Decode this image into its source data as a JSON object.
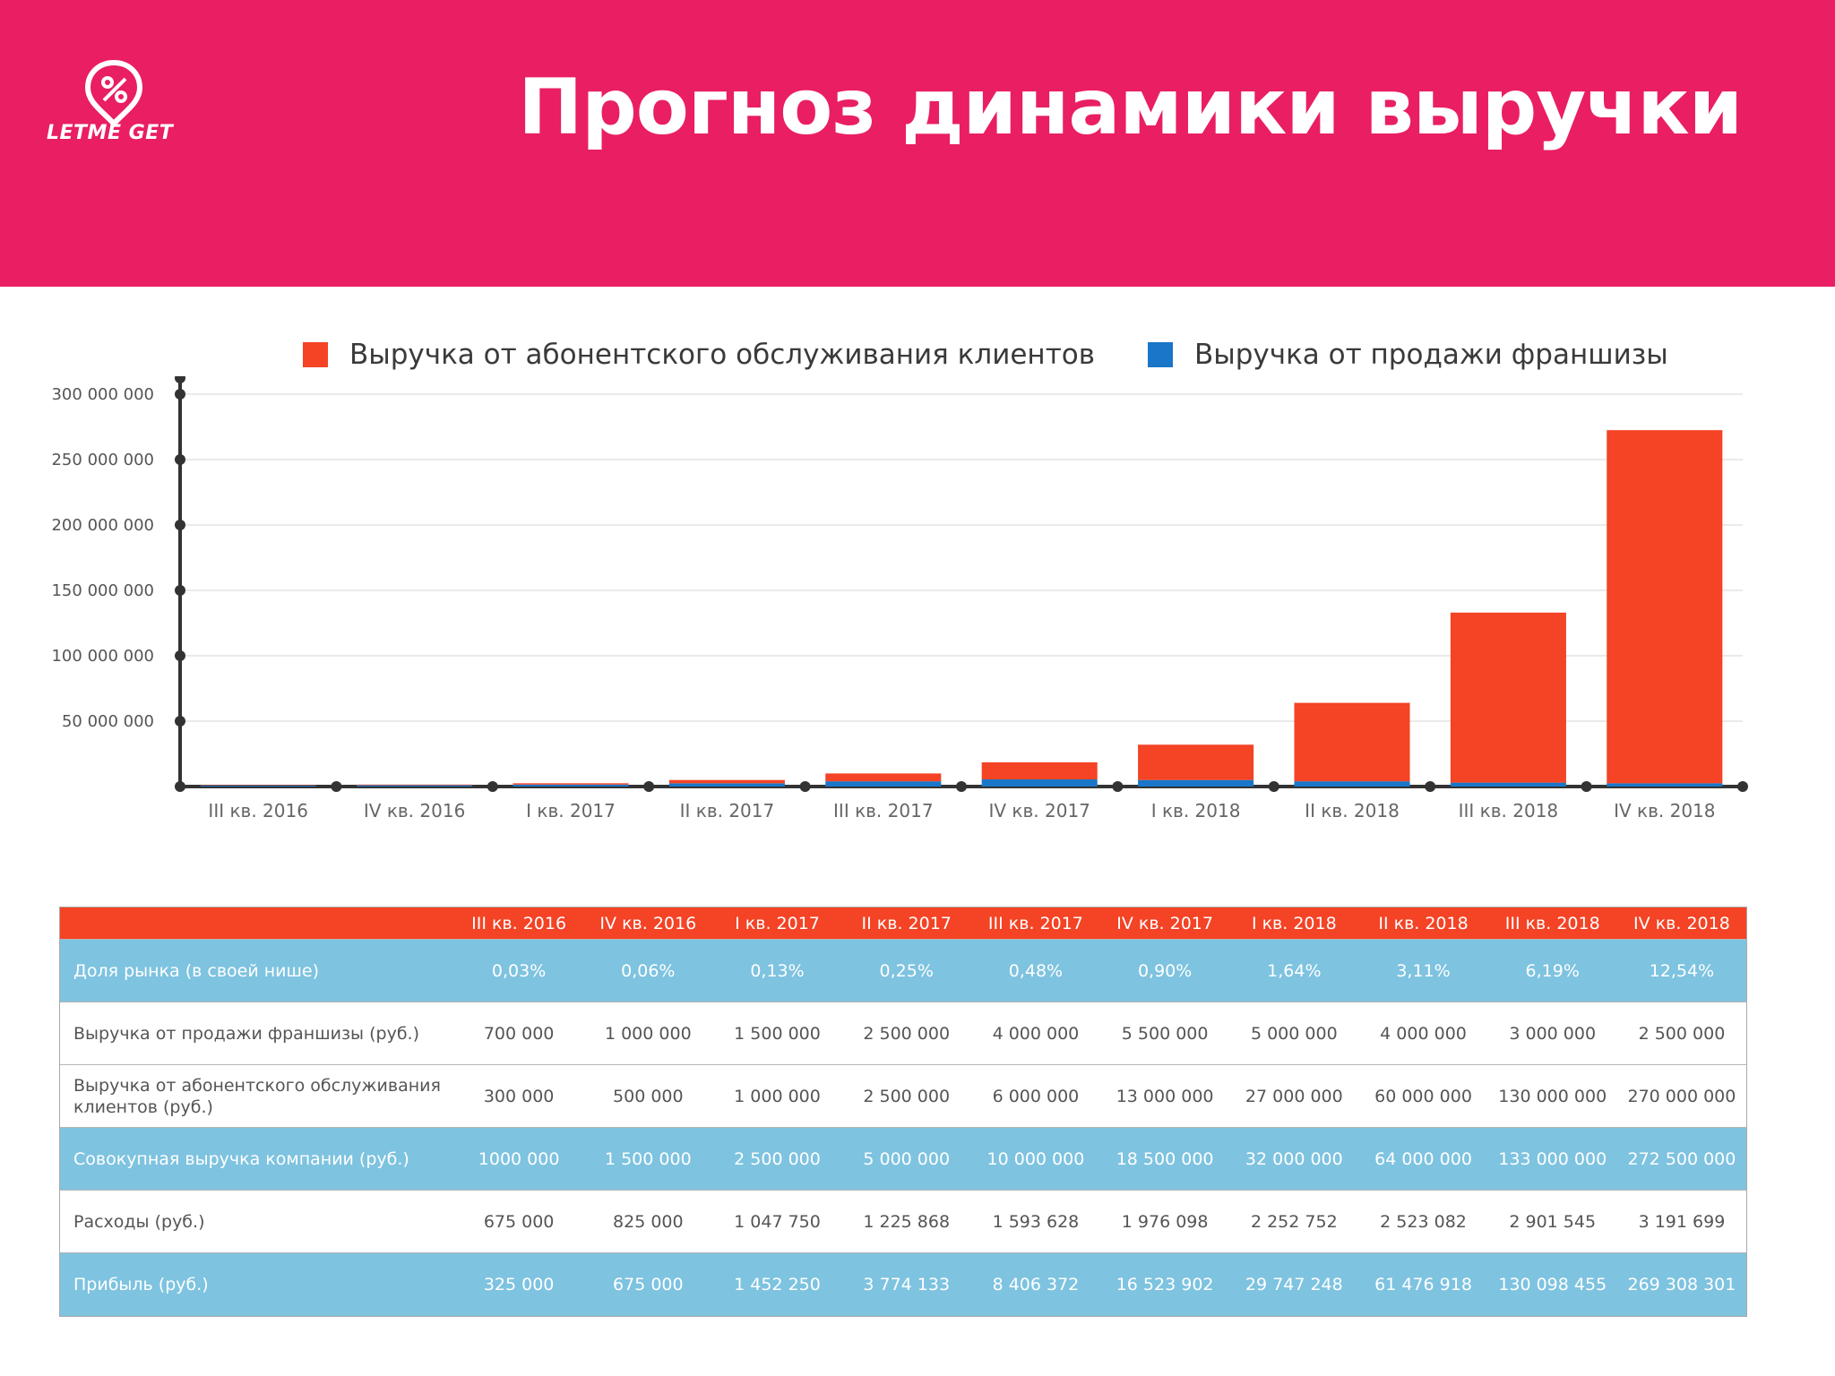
{
  "header": {
    "title": "Прогноз динамики выручки",
    "logo_text": "LETME GET",
    "background": "#e91e63"
  },
  "chart_data": {
    "type": "bar",
    "stacked": true,
    "categories": [
      "III кв. 2016",
      "IV кв. 2016",
      "I кв. 2017",
      "II кв. 2017",
      "III кв. 2017",
      "IV кв. 2017",
      "I кв. 2018",
      "II кв. 2018",
      "III кв. 2018",
      "IV кв. 2018"
    ],
    "series": [
      {
        "name": "Выручка от продажи франшизы",
        "color": "#1976c8",
        "values": [
          700000,
          1000000,
          1500000,
          2500000,
          4000000,
          5500000,
          5000000,
          4000000,
          3000000,
          2500000
        ]
      },
      {
        "name": "Выручка от абонентского обслуживания клиентов",
        "color": "#f44325",
        "values": [
          300000,
          500000,
          1000000,
          2500000,
          6000000,
          13000000,
          27000000,
          60000000,
          130000000,
          270000000
        ]
      }
    ],
    "legend_order": [
      1,
      0
    ],
    "ylim": [
      0,
      300000000
    ],
    "yticks": [
      50000000,
      100000000,
      150000000,
      200000000,
      250000000,
      300000000
    ],
    "ytick_labels": [
      "50 000 000",
      "100 000 000",
      "150 000 000",
      "200 000 000",
      "250 000 000",
      "300 000 000"
    ],
    "grid": true,
    "legend_position": "top"
  },
  "table": {
    "header": [
      "",
      "III кв. 2016",
      "IV кв. 2016",
      "I кв. 2017",
      "II кв. 2017",
      "III кв. 2017",
      "IV кв. 2017",
      "I кв. 2018",
      "II кв. 2018",
      "III кв. 2018",
      "IV кв. 2018"
    ],
    "rows": [
      {
        "style": "blue",
        "label": "Доля рынка  (в своей нише)",
        "values": [
          "0,03%",
          "0,06%",
          "0,13%",
          "0,25%",
          "0,48%",
          "0,90%",
          "1,64%",
          "3,11%",
          "6,19%",
          "12,54%"
        ]
      },
      {
        "style": "white",
        "label": "Выручка от продажи франшизы (руб.)",
        "values": [
          "700 000",
          "1 000 000",
          "1 500 000",
          "2 500 000",
          "4 000 000",
          "5 500 000",
          "5 000 000",
          "4 000 000",
          "3 000 000",
          "2 500 000"
        ]
      },
      {
        "style": "white",
        "label": "Выручка от абонентского обслуживания клиентов (руб.)",
        "values": [
          "300 000",
          "500 000",
          "1 000 000",
          "2 500 000",
          "6 000 000",
          "13 000 000",
          "27 000 000",
          "60 000 000",
          "130 000 000",
          "270 000 000"
        ]
      },
      {
        "style": "blue",
        "label": "Совокупная выручка компании (руб.)",
        "values": [
          "1000 000",
          "1 500 000",
          "2 500 000",
          "5 000 000",
          "10 000 000",
          "18 500 000",
          "32 000 000",
          "64 000 000",
          "133 000 000",
          "272 500 000"
        ]
      },
      {
        "style": "white",
        "label": "Расходы (руб.)",
        "values": [
          "675 000",
          "825 000",
          "1 047 750",
          "1 225 868",
          "1 593 628",
          "1 976 098",
          "2 252 752",
          "2 523 082",
          "2 901 545",
          "3 191 699"
        ]
      },
      {
        "style": "blue",
        "label": "Прибыль (руб.)",
        "values": [
          "325 000",
          "675 000",
          "1 452 250",
          "3 774 133",
          "8 406 372",
          "16 523 902",
          "29 747 248",
          "61 476 918",
          "130 098 455",
          "269 308 301"
        ]
      }
    ]
  }
}
